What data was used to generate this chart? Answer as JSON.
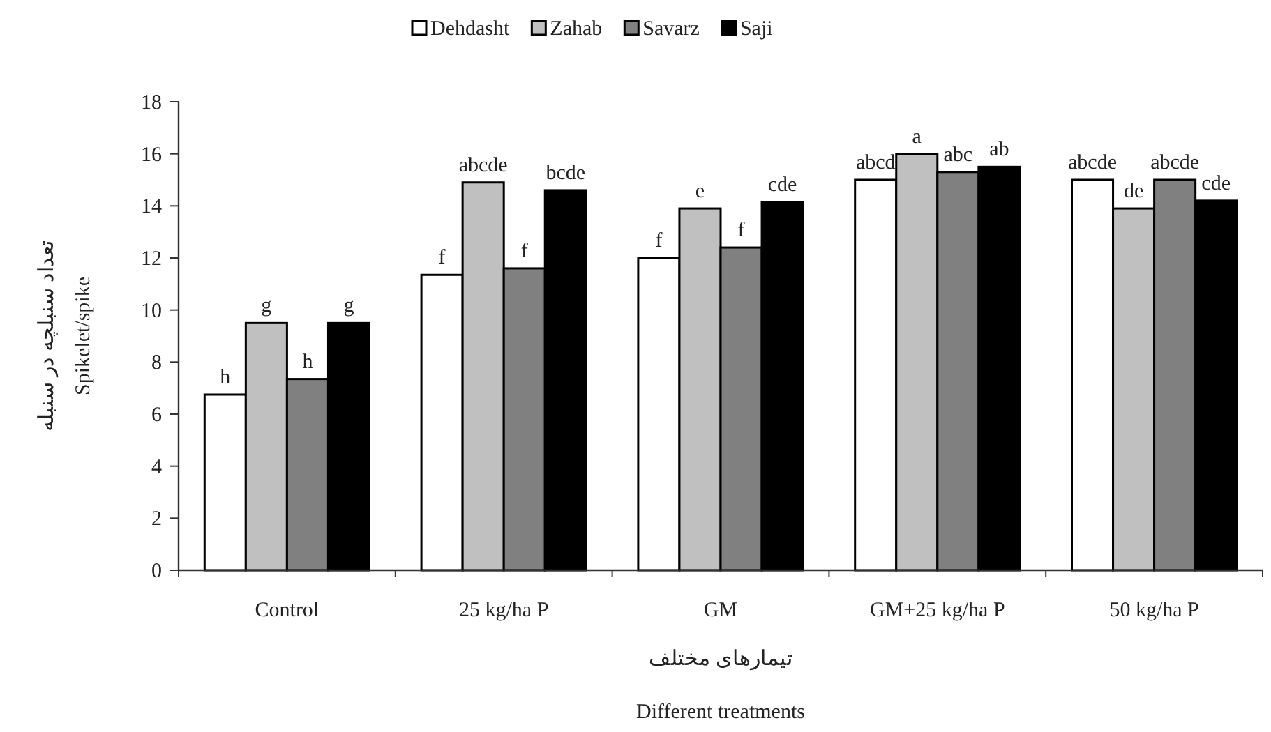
{
  "chart_data": {
    "type": "bar",
    "categories": [
      "Control",
      "25 kg/ha P",
      "GM",
      "GM+25 kg/ha P",
      "50 kg/ha P"
    ],
    "series": [
      {
        "name": "Dehdasht",
        "color": "#ffffff",
        "values": [
          6.75,
          11.35,
          12.0,
          15.0,
          15.0
        ],
        "value_labels": [
          "h",
          "f",
          "f",
          "abcd",
          "abcde"
        ]
      },
      {
        "name": "Zahab",
        "color": "#c0c0c0",
        "values": [
          9.5,
          14.9,
          13.9,
          16.0,
          13.9
        ],
        "value_labels": [
          "g",
          "abcde",
          "e",
          "a",
          "de"
        ]
      },
      {
        "name": "Savarz",
        "color": "#808080",
        "values": [
          7.35,
          11.6,
          12.4,
          15.3,
          15.0
        ],
        "value_labels": [
          "h",
          "f",
          "f",
          "abc",
          "abcde"
        ]
      },
      {
        "name": "Saji",
        "color": "#000000",
        "values": [
          9.5,
          14.6,
          14.15,
          15.5,
          14.2
        ],
        "value_labels": [
          "g",
          "bcde",
          "cde",
          "ab",
          "cde"
        ]
      }
    ],
    "ylim": [
      0,
      18
    ],
    "yticks": [
      0,
      2,
      4,
      6,
      8,
      10,
      12,
      14,
      16,
      18
    ],
    "ylabel": "تعداد سنبلچه در سنبله\nSpikelet/spike",
    "xlabel": "تیمارهای مختلف\nDifferent treatments",
    "legend": "top"
  }
}
